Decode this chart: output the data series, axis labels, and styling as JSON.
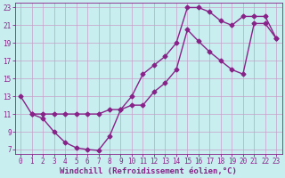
{
  "xlabel": "Windchill (Refroidissement éolien,°C)",
  "bg_color": "#c8eef0",
  "grid_color": "#c8a0c8",
  "line_color": "#882288",
  "xlim": [
    -0.5,
    23.5
  ],
  "ylim": [
    6.5,
    23.5
  ],
  "xticks": [
    0,
    1,
    2,
    3,
    4,
    5,
    6,
    7,
    8,
    9,
    10,
    11,
    12,
    13,
    14,
    15,
    16,
    17,
    18,
    19,
    20,
    21,
    22,
    23
  ],
  "yticks": [
    7,
    9,
    11,
    13,
    15,
    17,
    19,
    21,
    23
  ],
  "line1_x": [
    0,
    1,
    2,
    3,
    4,
    5,
    6,
    7,
    8,
    9,
    10,
    11,
    12,
    13,
    14,
    15,
    16,
    17,
    18,
    19,
    20,
    21,
    22,
    23
  ],
  "line1_y": [
    13,
    11,
    10.5,
    9,
    7.8,
    7.2,
    7.0,
    6.9,
    8.5,
    11.5,
    12.0,
    12.0,
    13.5,
    14.5,
    16.0,
    20.5,
    19.2,
    18.0,
    17.0,
    16.0,
    15.5,
    21.2,
    21.2,
    19.5
  ],
  "line2_x": [
    1,
    2,
    3,
    4,
    5,
    6,
    7,
    8,
    9,
    10,
    11,
    12,
    13,
    14,
    15,
    16,
    17,
    18,
    19,
    20,
    21,
    22,
    23
  ],
  "line2_y": [
    11,
    11,
    11,
    11,
    11,
    11,
    11,
    11.5,
    11.5,
    13.0,
    15.5,
    16.5,
    17.5,
    19.0,
    23.0,
    23.0,
    22.5,
    21.5,
    21.0,
    22.0,
    22.0,
    22.0,
    19.5
  ],
  "marker": "D",
  "markersize": 2.5,
  "linewidth": 1.0,
  "xlabel_fontsize": 6.5,
  "tick_fontsize": 5.5,
  "font_family": "monospace"
}
